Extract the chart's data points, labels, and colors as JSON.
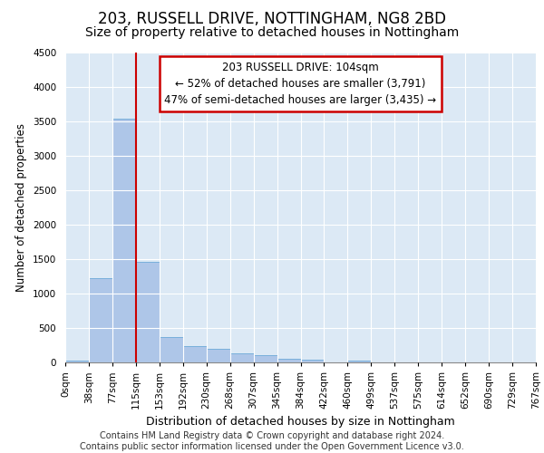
{
  "title1": "203, RUSSELL DRIVE, NOTTINGHAM, NG8 2BD",
  "title2": "Size of property relative to detached houses in Nottingham",
  "xlabel": "Distribution of detached houses by size in Nottingham",
  "ylabel": "Number of detached properties",
  "footer1": "Contains HM Land Registry data © Crown copyright and database right 2024.",
  "footer2": "Contains public sector information licensed under the Open Government Licence v3.0.",
  "bin_labels": [
    "0sqm",
    "38sqm",
    "77sqm",
    "115sqm",
    "153sqm",
    "192sqm",
    "230sqm",
    "268sqm",
    "307sqm",
    "345sqm",
    "384sqm",
    "422sqm",
    "460sqm",
    "499sqm",
    "537sqm",
    "575sqm",
    "614sqm",
    "652sqm",
    "690sqm",
    "729sqm",
    "767sqm"
  ],
  "bar_values": [
    30,
    1220,
    3530,
    1460,
    370,
    240,
    200,
    130,
    100,
    55,
    40,
    0,
    20,
    0,
    0,
    0,
    0,
    0,
    0,
    0
  ],
  "bar_color": "#aec6e8",
  "bar_edge_color": "#5a9fd4",
  "property_label": "203 RUSSELL DRIVE: 104sqm",
  "annotation_line1": "← 52% of detached houses are smaller (3,791)",
  "annotation_line2": "47% of semi-detached houses are larger (3,435) →",
  "annotation_box_color": "#ffffff",
  "annotation_border_color": "#cc0000",
  "vline_color": "#cc0000",
  "vline_x": 3.0,
  "ylim": [
    0,
    4500
  ],
  "yticks": [
    0,
    500,
    1000,
    1500,
    2000,
    2500,
    3000,
    3500,
    4000,
    4500
  ],
  "grid_color": "#ffffff",
  "bg_color": "#dce9f5",
  "title1_fontsize": 12,
  "title2_fontsize": 10,
  "xlabel_fontsize": 9,
  "ylabel_fontsize": 8.5,
  "tick_fontsize": 7.5,
  "annotation_fontsize": 8.5,
  "footer_fontsize": 7
}
